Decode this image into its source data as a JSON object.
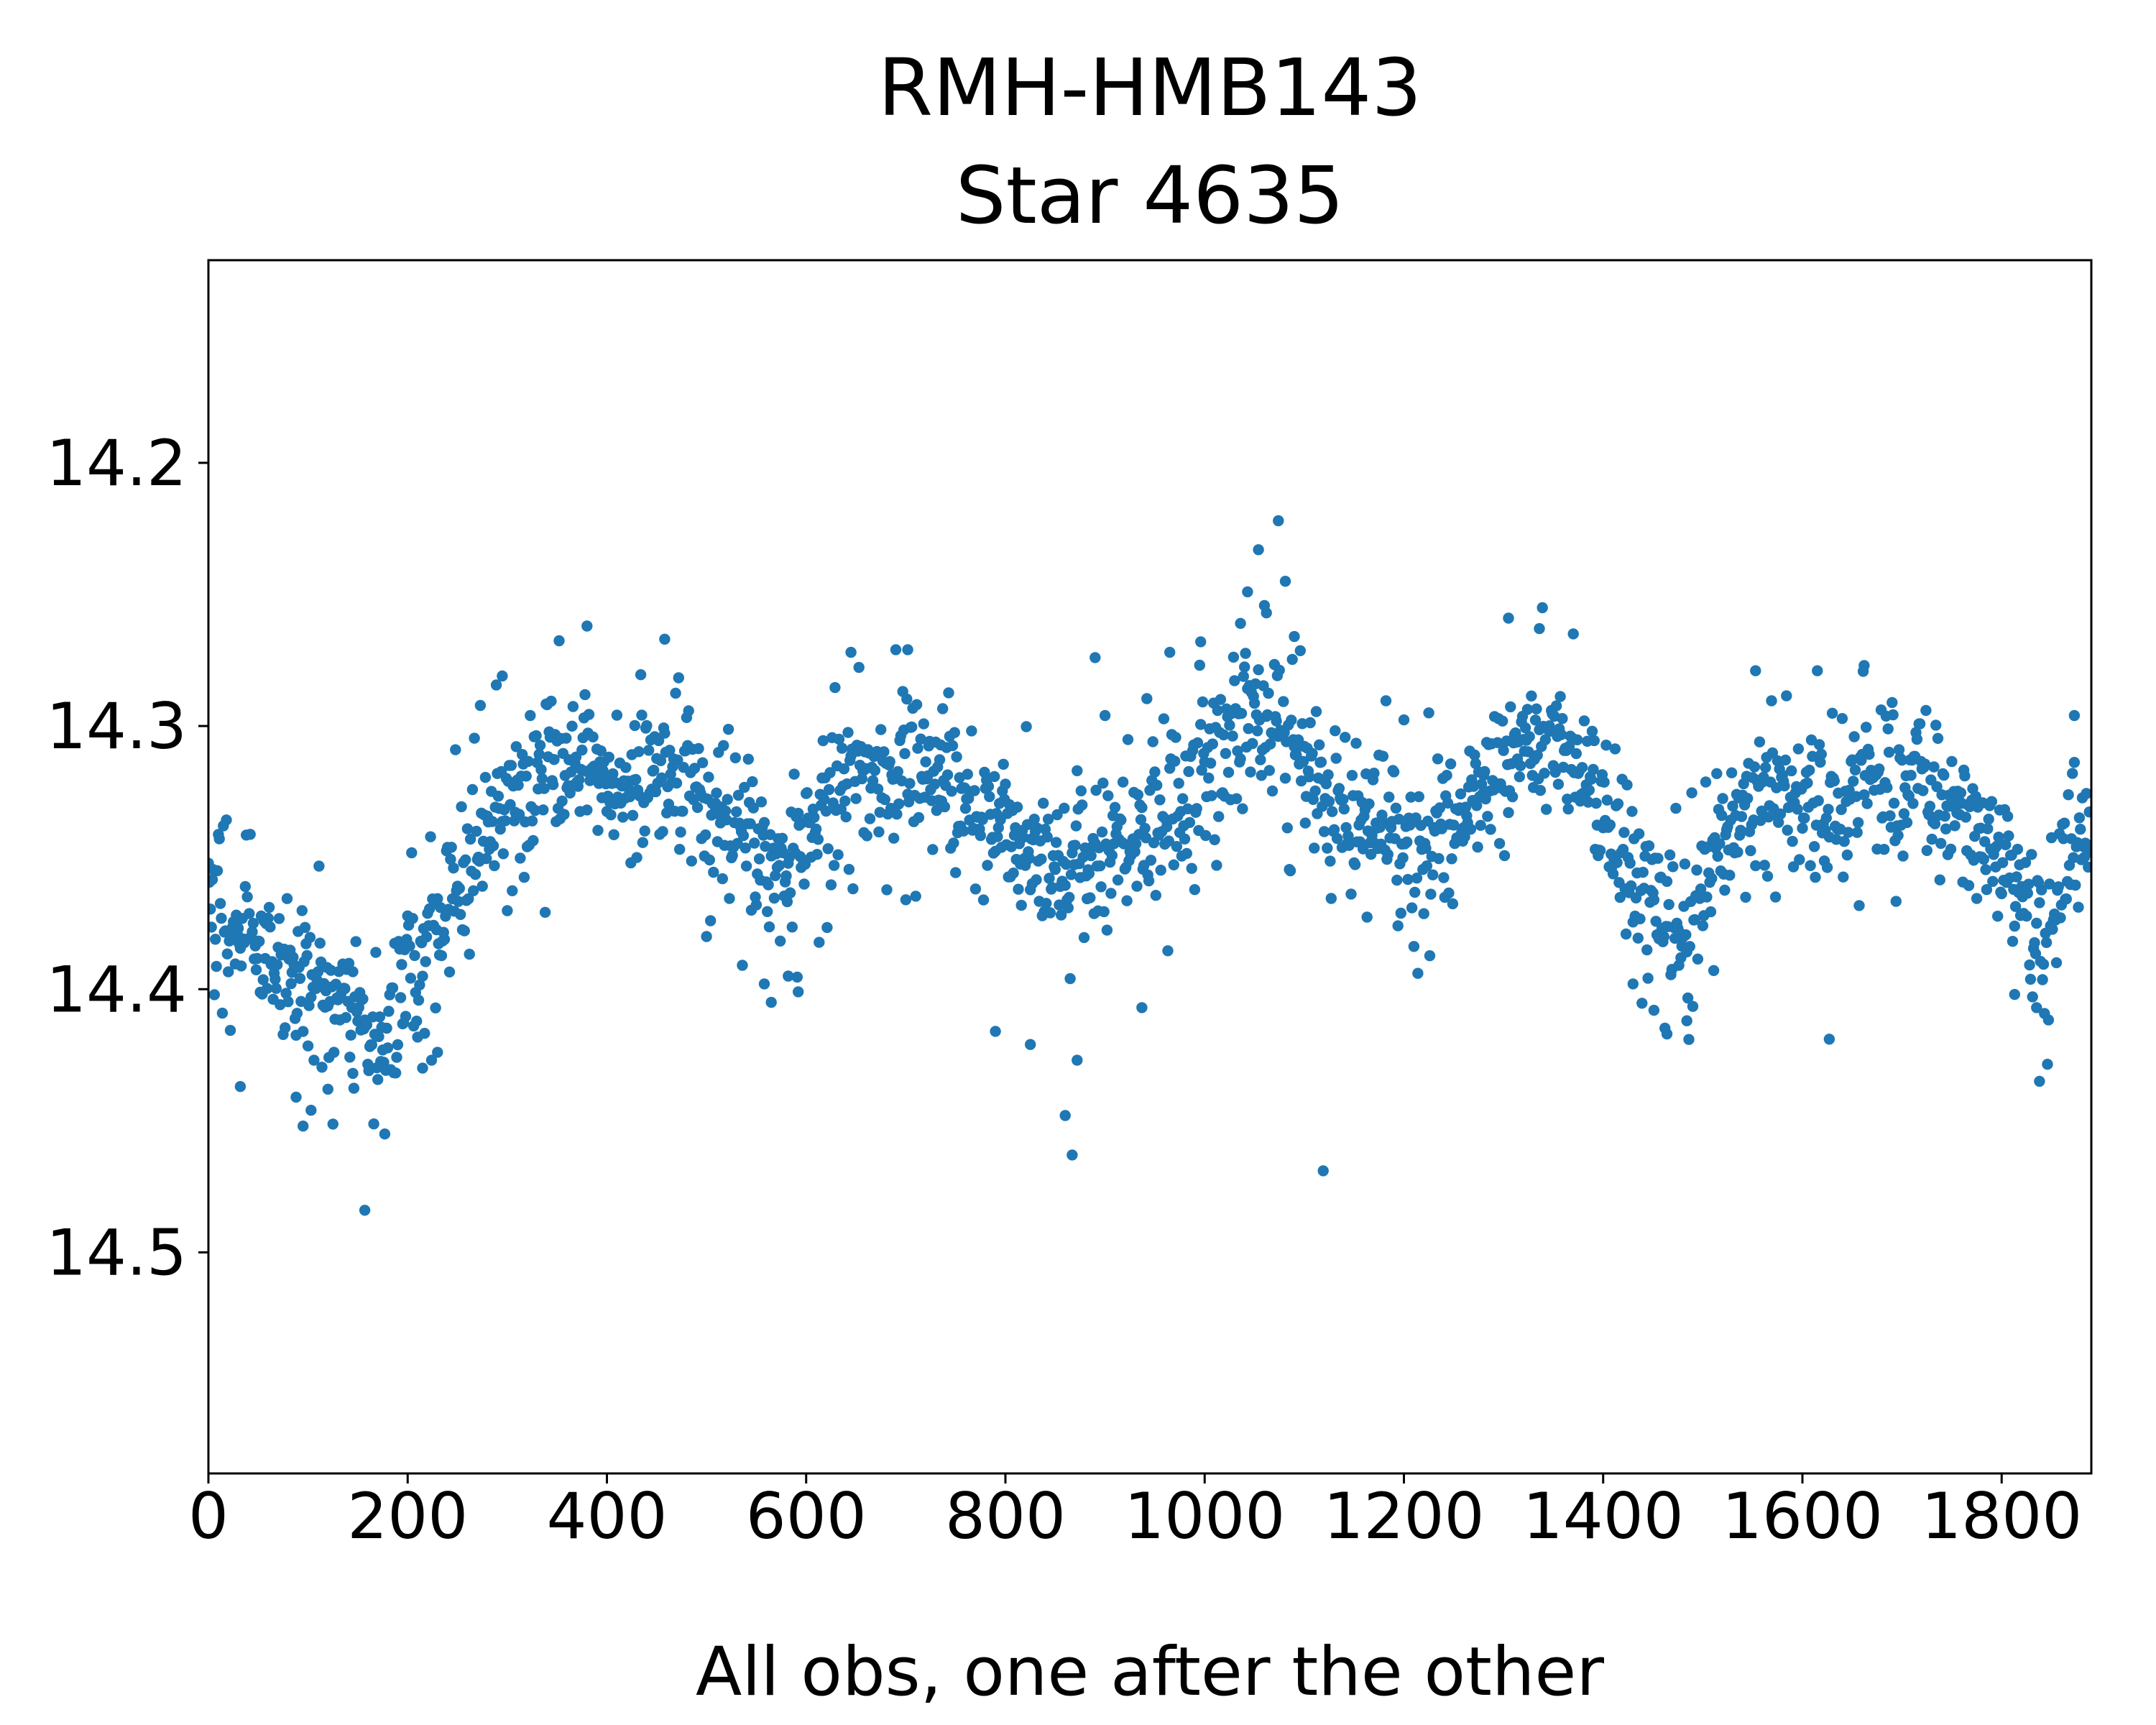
{
  "figure": {
    "background": "#ffffff",
    "title_line1": "RMH-HMB143",
    "title_line2": "Star 4635"
  },
  "chart_data": {
    "type": "scatter",
    "title": "RMH-HMB143\nStar 4635",
    "title_lines": [
      "RMH-HMB143",
      "Star 4635"
    ],
    "xlabel": "All obs, one after the other",
    "ylabel": "",
    "legend": "none",
    "grid": false,
    "x_ticks": [
      0,
      200,
      400,
      600,
      800,
      1000,
      1200,
      1400,
      1600,
      1800
    ],
    "x_tick_labels": [
      "0",
      "200",
      "400",
      "600",
      "800",
      "1000",
      "1200",
      "1400",
      "1600",
      "1800"
    ],
    "y_ticks": [
      14.2,
      14.3,
      14.4,
      14.5
    ],
    "y_tick_labels": [
      "14.2",
      "14.3",
      "14.4",
      "14.5"
    ],
    "xlim": [
      0,
      1890
    ],
    "ylim": [
      14.584,
      14.123
    ],
    "y_axis_inverted": true,
    "n_points": 1890,
    "random_seed": 4635,
    "marker": {
      "shape": "circle",
      "color": "#1f77b4",
      "radius_px": 7.7
    },
    "axis_color": "#000000",
    "noise_sigma_mag": [
      0.013,
      0.027
    ],
    "noise_mix_prob_narrow": 0.8,
    "trend_anchors": [
      [
        0,
        14.358
      ],
      [
        20,
        14.368
      ],
      [
        40,
        14.378
      ],
      [
        60,
        14.385
      ],
      [
        80,
        14.393
      ],
      [
        100,
        14.398
      ],
      [
        120,
        14.4
      ],
      [
        140,
        14.405
      ],
      [
        160,
        14.412
      ],
      [
        180,
        14.415
      ],
      [
        200,
        14.398
      ],
      [
        220,
        14.38
      ],
      [
        240,
        14.365
      ],
      [
        260,
        14.35
      ],
      [
        280,
        14.338
      ],
      [
        300,
        14.33
      ],
      [
        320,
        14.328
      ],
      [
        340,
        14.32
      ],
      [
        360,
        14.316
      ],
      [
        380,
        14.316
      ],
      [
        400,
        14.322
      ],
      [
        420,
        14.32
      ],
      [
        440,
        14.316
      ],
      [
        460,
        14.313
      ],
      [
        480,
        14.32
      ],
      [
        500,
        14.33
      ],
      [
        520,
        14.338
      ],
      [
        540,
        14.345
      ],
      [
        560,
        14.352
      ],
      [
        580,
        14.352
      ],
      [
        600,
        14.34
      ],
      [
        620,
        14.328
      ],
      [
        640,
        14.318
      ],
      [
        660,
        14.32
      ],
      [
        680,
        14.318
      ],
      [
        700,
        14.316
      ],
      [
        720,
        14.32
      ],
      [
        740,
        14.326
      ],
      [
        760,
        14.33
      ],
      [
        780,
        14.336
      ],
      [
        800,
        14.342
      ],
      [
        820,
        14.35
      ],
      [
        840,
        14.355
      ],
      [
        860,
        14.358
      ],
      [
        880,
        14.352
      ],
      [
        900,
        14.346
      ],
      [
        920,
        14.344
      ],
      [
        940,
        14.34
      ],
      [
        960,
        14.336
      ],
      [
        980,
        14.332
      ],
      [
        1000,
        14.322
      ],
      [
        1020,
        14.308
      ],
      [
        1040,
        14.3
      ],
      [
        1060,
        14.296
      ],
      [
        1080,
        14.302
      ],
      [
        1100,
        14.312
      ],
      [
        1120,
        14.326
      ],
      [
        1140,
        14.332
      ],
      [
        1160,
        14.336
      ],
      [
        1180,
        14.34
      ],
      [
        1200,
        14.344
      ],
      [
        1220,
        14.346
      ],
      [
        1240,
        14.342
      ],
      [
        1260,
        14.332
      ],
      [
        1280,
        14.322
      ],
      [
        1300,
        14.312
      ],
      [
        1320,
        14.306
      ],
      [
        1340,
        14.305
      ],
      [
        1360,
        14.31
      ],
      [
        1380,
        14.32
      ],
      [
        1400,
        14.332
      ],
      [
        1420,
        14.348
      ],
      [
        1440,
        14.362
      ],
      [
        1460,
        14.374
      ],
      [
        1480,
        14.373
      ],
      [
        1500,
        14.36
      ],
      [
        1520,
        14.348
      ],
      [
        1540,
        14.338
      ],
      [
        1560,
        14.328
      ],
      [
        1580,
        14.322
      ],
      [
        1600,
        14.326
      ],
      [
        1620,
        14.33
      ],
      [
        1640,
        14.328
      ],
      [
        1660,
        14.32
      ],
      [
        1680,
        14.316
      ],
      [
        1700,
        14.32
      ],
      [
        1720,
        14.326
      ],
      [
        1740,
        14.33
      ],
      [
        1760,
        14.334
      ],
      [
        1780,
        14.338
      ],
      [
        1800,
        14.35
      ],
      [
        1815,
        14.36
      ],
      [
        1830,
        14.372
      ],
      [
        1845,
        14.38
      ],
      [
        1860,
        14.358
      ],
      [
        1875,
        14.342
      ],
      [
        1890,
        14.335
      ]
    ],
    "bright_outliers": [
      [
        1074,
        14.222
      ],
      [
        1054,
        14.233
      ],
      [
        1081,
        14.245
      ],
      [
        1043,
        14.249
      ],
      [
        1036,
        14.261
      ],
      [
        1090,
        14.266
      ],
      [
        1062,
        14.257
      ],
      [
        380,
        14.262
      ],
      [
        458,
        14.267
      ],
      [
        1305,
        14.259
      ],
      [
        1336,
        14.263
      ],
      [
        645,
        14.272
      ],
      [
        702,
        14.271
      ],
      [
        965,
        14.272
      ],
      [
        996,
        14.268
      ],
      [
        1553,
        14.279
      ],
      [
        1662,
        14.277
      ],
      [
        890,
        14.274
      ],
      [
        295,
        14.281
      ],
      [
        1873,
        14.296
      ]
    ],
    "faint_outliers": [
      [
        157,
        14.484
      ],
      [
        860,
        14.448
      ],
      [
        867,
        14.463
      ],
      [
        1119,
        14.469
      ],
      [
        95,
        14.452
      ],
      [
        103,
        14.446
      ],
      [
        88,
        14.441
      ],
      [
        32,
        14.437
      ],
      [
        1838,
        14.435
      ],
      [
        1627,
        14.419
      ],
      [
        1464,
        14.417
      ],
      [
        1451,
        14.408
      ],
      [
        1484,
        14.412
      ],
      [
        565,
        14.405
      ],
      [
        592,
        14.401
      ],
      [
        937,
        14.407
      ],
      [
        825,
        14.421
      ],
      [
        872,
        14.427
      ],
      [
        790,
        14.416
      ],
      [
        215,
        14.43
      ],
      [
        230,
        14.424
      ],
      [
        558,
        14.398
      ],
      [
        582,
        14.395
      ],
      [
        1430,
        14.398
      ],
      [
        1813,
        14.402
      ],
      [
        1835,
        14.407
      ],
      [
        120,
        14.438
      ],
      [
        145,
        14.432
      ]
    ]
  }
}
